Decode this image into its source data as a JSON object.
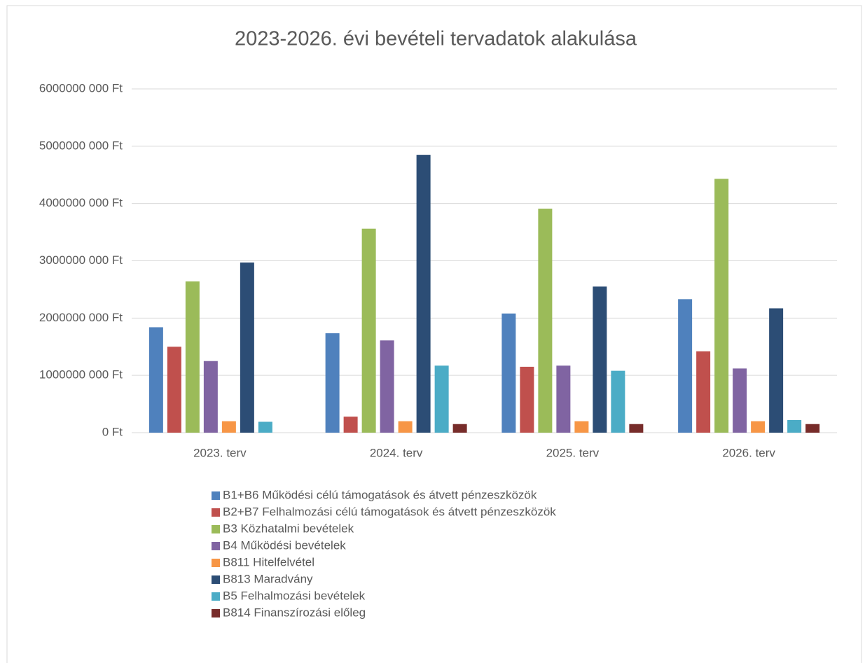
{
  "chart_data": {
    "type": "bar",
    "title": "2023-2026. évi bevételi tervadatok alakulása",
    "categories": [
      "2023. terv",
      "2024. terv",
      "2025. terv",
      "2026. terv"
    ],
    "series": [
      {
        "name": "B1+B6 Működési célú támogatások és átvett pénzeszközök",
        "color": "#4f81bd",
        "values": [
          1840000000,
          1735000000,
          2080000000,
          2330000000
        ]
      },
      {
        "name": "B2+B7 Felhalmozási célú támogatások és átvett pénzeszközök",
        "color": "#c0504d",
        "values": [
          1500000000,
          280000000,
          1150000000,
          1420000000
        ]
      },
      {
        "name": "B3 Közhatalmi bevételek",
        "color": "#9bbb59",
        "values": [
          2640000000,
          3560000000,
          3910000000,
          4430000000
        ]
      },
      {
        "name": "B4  Működési bevételek",
        "color": "#8064a2",
        "values": [
          1250000000,
          1610000000,
          1170000000,
          1120000000
        ]
      },
      {
        "name": "B811 Hitelfelvétel",
        "color": "#f79646",
        "values": [
          200000000,
          200000000,
          200000000,
          200000000
        ]
      },
      {
        "name": "B813 Maradvány",
        "color": "#2c4d75",
        "values": [
          2970000000,
          4850000000,
          2550000000,
          2170000000
        ]
      },
      {
        "name": "B5 Felhalmozási bevételek",
        "color": "#4bacc6",
        "values": [
          190000000,
          1170000000,
          1080000000,
          220000000
        ]
      },
      {
        "name": "B814 Finanszírozási előleg",
        "color": "#772c2a",
        "values": [
          null,
          150000000,
          150000000,
          150000000
        ]
      }
    ],
    "ylim": [
      0,
      6000000000
    ],
    "yticks": [
      {
        "value": 0,
        "label": "0 Ft"
      },
      {
        "value": 1000000000,
        "label": "1000000 000 Ft"
      },
      {
        "value": 2000000000,
        "label": "2000000 000 Ft"
      },
      {
        "value": 3000000000,
        "label": "3000000 000 Ft"
      },
      {
        "value": 4000000000,
        "label": "4000000 000 Ft"
      },
      {
        "value": 5000000000,
        "label": "5000000 000 Ft"
      },
      {
        "value": 6000000000,
        "label": "6000000 000 Ft"
      }
    ],
    "grid": true,
    "legend": "bottom"
  }
}
